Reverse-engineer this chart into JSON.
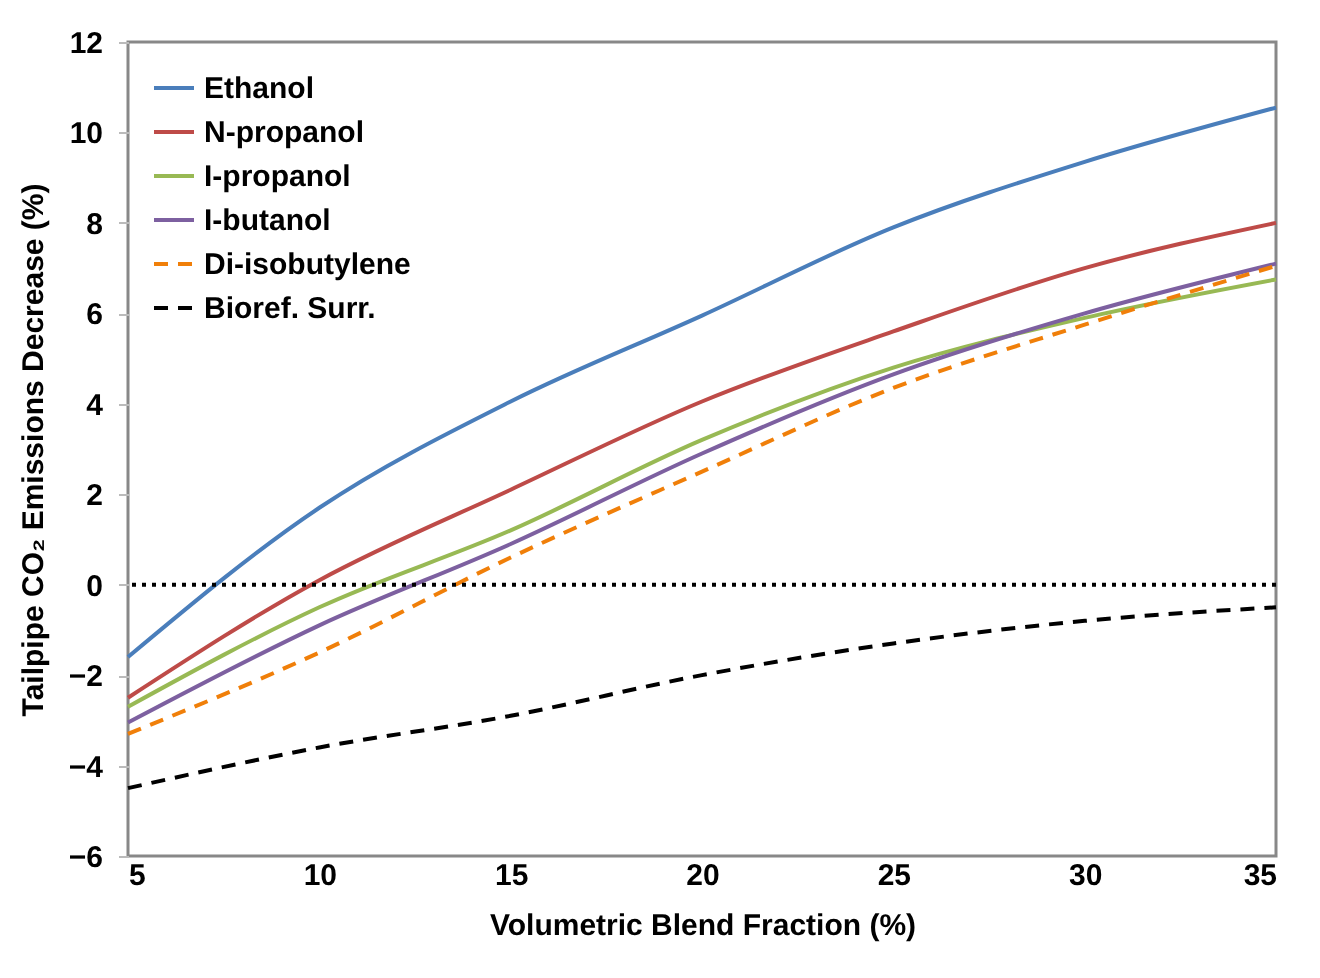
{
  "chart_data": {
    "type": "line",
    "xlabel": "Volumetric Blend Fraction (%)",
    "ylabel": "Tailpipe CO₂ Emissions Decrease (%)",
    "x": [
      5,
      10,
      15,
      20,
      25,
      30,
      35
    ],
    "series": [
      {
        "name": "Ethanol",
        "color": "#4a7ebb",
        "values": [
          -1.6,
          1.7,
          4.05,
          5.95,
          7.9,
          9.35,
          10.55
        ]
      },
      {
        "name": "N-propanol",
        "color": "#be4b48",
        "values": [
          -2.5,
          0.1,
          2.1,
          4.05,
          5.6,
          7.0,
          8.0
        ]
      },
      {
        "name": "I-propanol",
        "color": "#98b954",
        "values": [
          -2.7,
          -0.5,
          1.2,
          3.2,
          4.8,
          5.9,
          6.75
        ]
      },
      {
        "name": "I-butanol",
        "color": "#7d60a0",
        "values": [
          -3.05,
          -0.9,
          0.9,
          2.9,
          4.65,
          6.0,
          7.1
        ]
      },
      {
        "name": "Di-isobutylene",
        "color": "#f07f09",
        "line_style": "dashed",
        "values": [
          -3.3,
          -1.5,
          0.6,
          2.5,
          4.35,
          5.75,
          7.05
        ]
      },
      {
        "name": "Bioref. Surr.",
        "color": "#000000",
        "line_style": "dashed",
        "values": [
          -4.5,
          -3.6,
          -2.9,
          -2.0,
          -1.3,
          -0.8,
          -0.5
        ]
      }
    ],
    "xlim": [
      5,
      35
    ],
    "xticks": [
      5,
      10,
      15,
      20,
      25,
      30,
      35
    ],
    "ylim": [
      -6,
      12
    ],
    "yticks": [
      -6,
      -4,
      -2,
      0,
      2,
      4,
      6,
      8,
      10,
      12
    ],
    "ref_lines": [
      {
        "axis": "y",
        "value": 0,
        "color": "#000000",
        "line_style": "dotted"
      }
    ],
    "grid": false,
    "legend": "top left",
    "marker": "none"
  }
}
